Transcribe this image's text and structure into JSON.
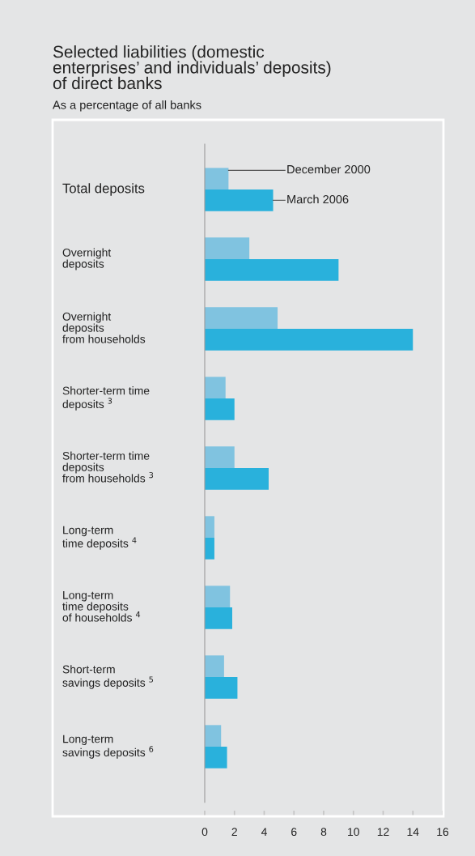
{
  "chart_data": {
    "type": "bar",
    "orientation": "horizontal",
    "title": "Selected liabilities (domestic\nenterprises’ and individuals’ deposits)\nof direct banks",
    "subtitle": "As a percentage of all banks",
    "categories": [
      "Total deposits",
      "Overnight\ndeposits",
      "Overnight\ndeposits\nfrom households",
      "Shorter-term time\ndeposits $^{3}$",
      "Shorter-term time\ndeposits\nfrom households $^{3}$",
      "Long-term\ntime deposits $^{4}$",
      "Long-term\ntime deposits\nof households $^{4}$",
      "Short-term\nsavings deposits $^{5}$",
      "Long-term\nsavings deposits $^{6}$"
    ],
    "series": [
      {
        "name": "December 2000",
        "color": "#80c3e0",
        "values": [
          1.6,
          3.0,
          4.9,
          1.4,
          2.0,
          0.65,
          1.7,
          1.3,
          1.1
        ]
      },
      {
        "name": "March 2006",
        "color": "#29b1dc",
        "values": [
          4.6,
          9.0,
          14.0,
          2.0,
          4.3,
          0.65,
          1.85,
          2.2,
          1.5
        ]
      }
    ],
    "xlim": [
      0,
      16
    ],
    "xticks": [
      0,
      2,
      4,
      6,
      8,
      10,
      12,
      14,
      16
    ],
    "grid": false
  }
}
